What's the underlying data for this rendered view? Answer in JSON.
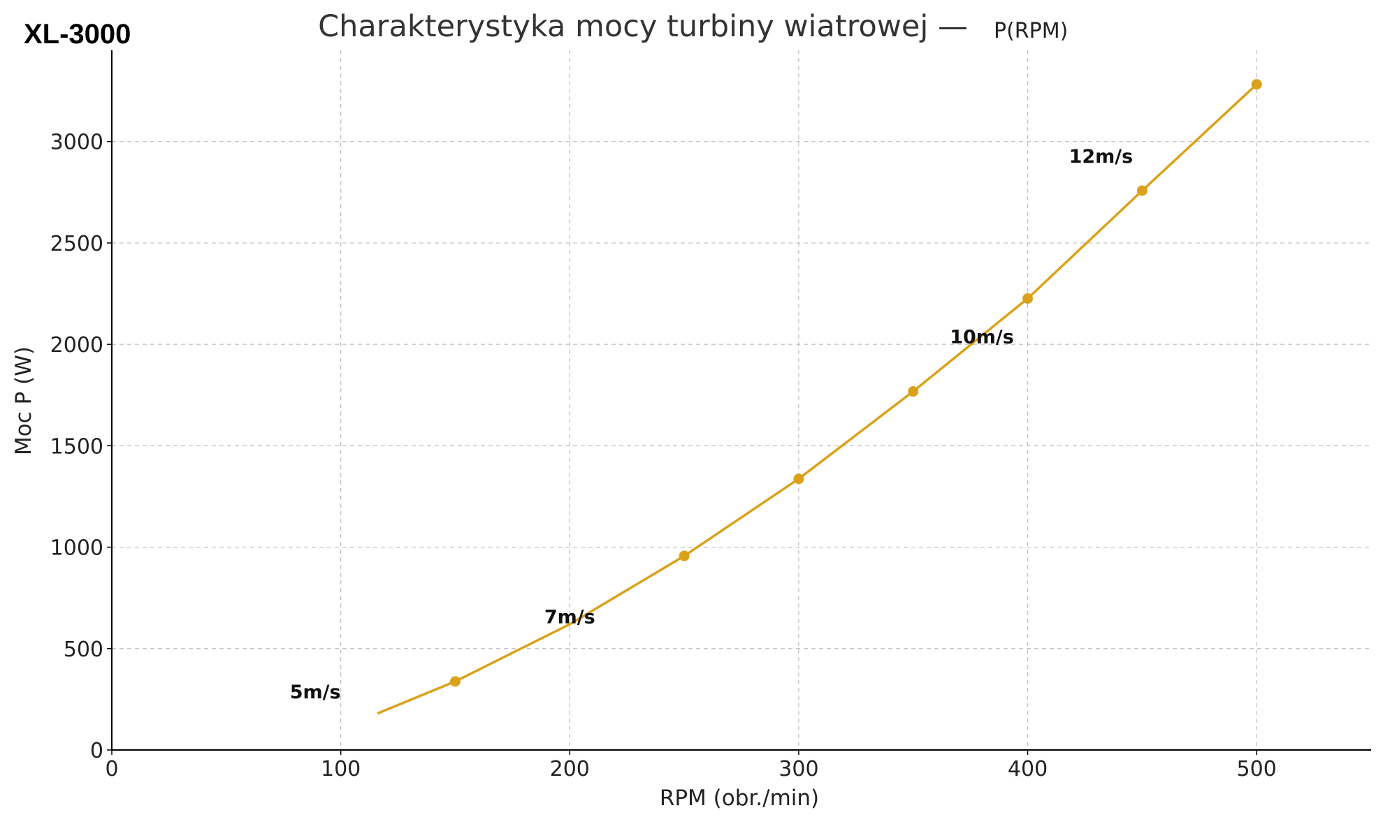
{
  "model_label": "XL-3000",
  "chart_data": {
    "type": "line",
    "title": "Charakterystyka mocy turbiny wiatrowej —",
    "title_suffix": "P(RPM)",
    "xlabel": "RPM (obr./min)",
    "ylabel": "Moc P (W)",
    "xlim": [
      0,
      550
    ],
    "ylim": [
      0,
      3450
    ],
    "xticks": [
      0,
      100,
      200,
      300,
      400,
      500
    ],
    "yticks": [
      0,
      500,
      1000,
      1500,
      2000,
      2500,
      3000
    ],
    "grid": true,
    "series": [
      {
        "color": "#DAA21B",
        "line_points": [
          {
            "x": 116,
            "y": 180
          },
          {
            "x": 150,
            "y": 338
          },
          {
            "x": 200,
            "y": 620
          },
          {
            "x": 250,
            "y": 957
          },
          {
            "x": 300,
            "y": 1337
          },
          {
            "x": 350,
            "y": 1768
          },
          {
            "x": 400,
            "y": 2226
          },
          {
            "x": 450,
            "y": 2758
          },
          {
            "x": 500,
            "y": 3282
          }
        ],
        "markers": [
          {
            "x": 150,
            "y": 338
          },
          {
            "x": 250,
            "y": 957
          },
          {
            "x": 300,
            "y": 1337
          },
          {
            "x": 350,
            "y": 1768
          },
          {
            "x": 400,
            "y": 2226
          },
          {
            "x": 450,
            "y": 2758
          },
          {
            "x": 500,
            "y": 3282
          }
        ]
      }
    ],
    "annotations": [
      {
        "text": "5m/s",
        "x": 100,
        "y": 255,
        "anchor": "end"
      },
      {
        "text": "7m/s",
        "x": 200,
        "y": 625,
        "anchor": "middle"
      },
      {
        "text": "10m/s",
        "x": 380,
        "y": 2005,
        "anchor": "middle"
      },
      {
        "text": "12m/s",
        "x": 432,
        "y": 2895,
        "anchor": "middle"
      }
    ]
  }
}
